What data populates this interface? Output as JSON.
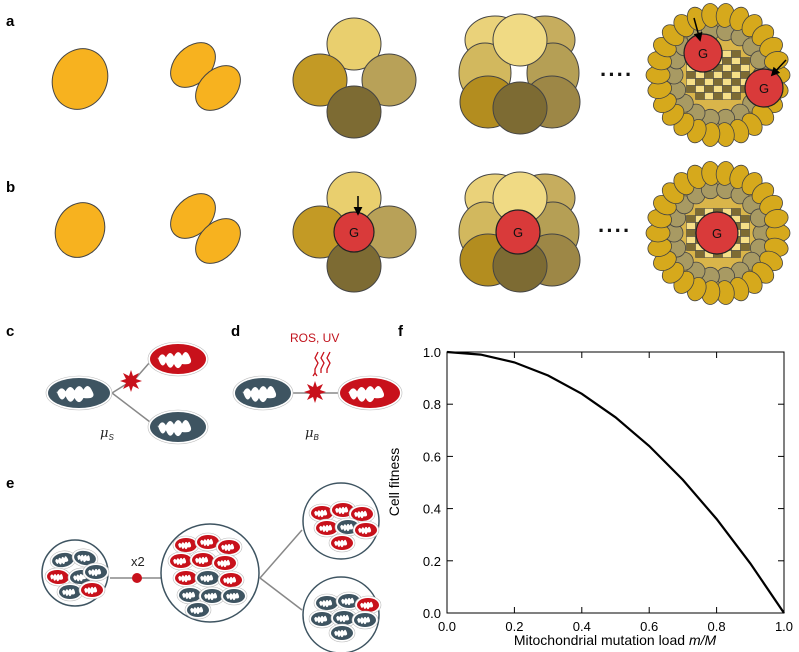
{
  "panels": {
    "a": "a",
    "b": "b",
    "c": "c",
    "d": "d",
    "e": "e",
    "f": "f"
  },
  "embryo": {
    "germline_label": "G",
    "ellipsis": "····"
  },
  "mito": {
    "mu_symbol": "μ",
    "mu_s_sub": "S",
    "mu_b_sub": "B",
    "ros_label": "ROS, UV",
    "dup_label": "x2"
  },
  "colors": {
    "cell_orange": "#f7b21f",
    "germline_red": "#d93a3a",
    "mito_wild": "#3e5461",
    "mito_mutant": "#c8111b"
  },
  "chart_data": {
    "type": "line",
    "xlabel_prefix": "Mitochondrial mutation load ",
    "xlabel_var": "m/M",
    "ylabel": "Cell fitness",
    "xlim": [
      0.0,
      1.0
    ],
    "ylim": [
      0.0,
      1.0
    ],
    "xticks": [
      "0.0",
      "0.2",
      "0.4",
      "0.6",
      "0.8",
      "1.0"
    ],
    "yticks": [
      "0.0",
      "0.2",
      "0.4",
      "0.6",
      "0.8",
      "1.0"
    ],
    "grid": false,
    "series": [
      {
        "x": [
          0.0,
          0.1,
          0.2,
          0.3,
          0.4,
          0.5,
          0.6,
          0.7,
          0.8,
          0.9,
          1.0
        ],
        "y": [
          1.0,
          0.99,
          0.96,
          0.91,
          0.84,
          0.75,
          0.64,
          0.51,
          0.36,
          0.19,
          0.0
        ]
      }
    ]
  }
}
